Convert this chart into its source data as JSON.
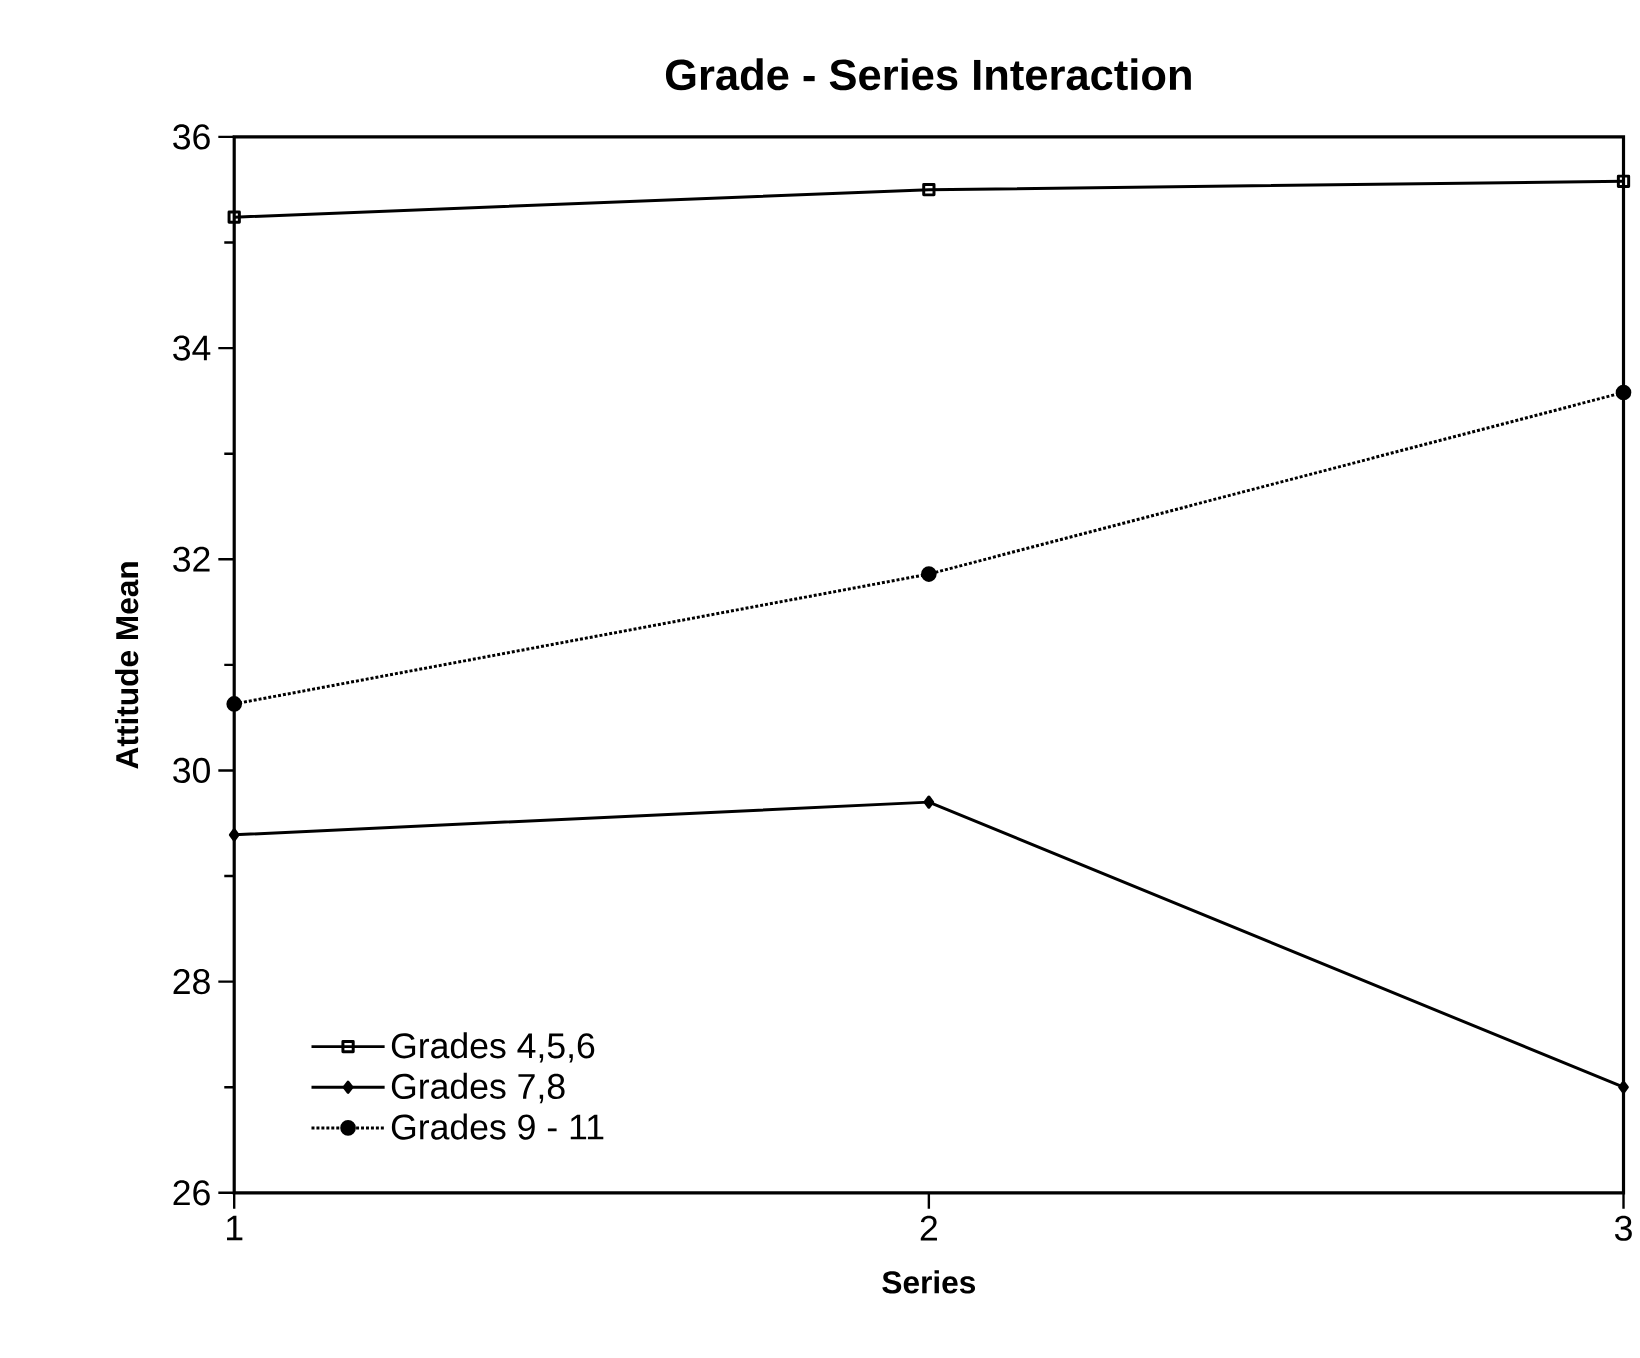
{
  "chart_data": {
    "type": "line",
    "title": "Grade - Series Interaction",
    "xlabel": "Series",
    "ylabel": "Attitude Mean",
    "x": [
      1,
      2,
      3
    ],
    "xlim": [
      1,
      3
    ],
    "xticks": [
      1,
      2,
      3
    ],
    "ylim": [
      26,
      36
    ],
    "yticks": [
      26,
      28,
      30,
      32,
      34,
      36
    ],
    "legend": "bottom left",
    "grid": false,
    "series": [
      {
        "name": "Grades 4,5,6",
        "color": "#000000",
        "values": [
          35.24,
          35.5,
          35.58
        ],
        "marker": "square",
        "line_style": "solid"
      },
      {
        "name": "Grades 7,8",
        "color": "#000000",
        "values": [
          29.39,
          29.7,
          27.0
        ],
        "marker": "diamond",
        "line_style": "solid"
      },
      {
        "name": "Grades 9 - 11",
        "color": "#000000",
        "values": [
          30.63,
          31.86,
          33.58
        ],
        "marker": "circle",
        "line_style": "dotted"
      }
    ]
  }
}
